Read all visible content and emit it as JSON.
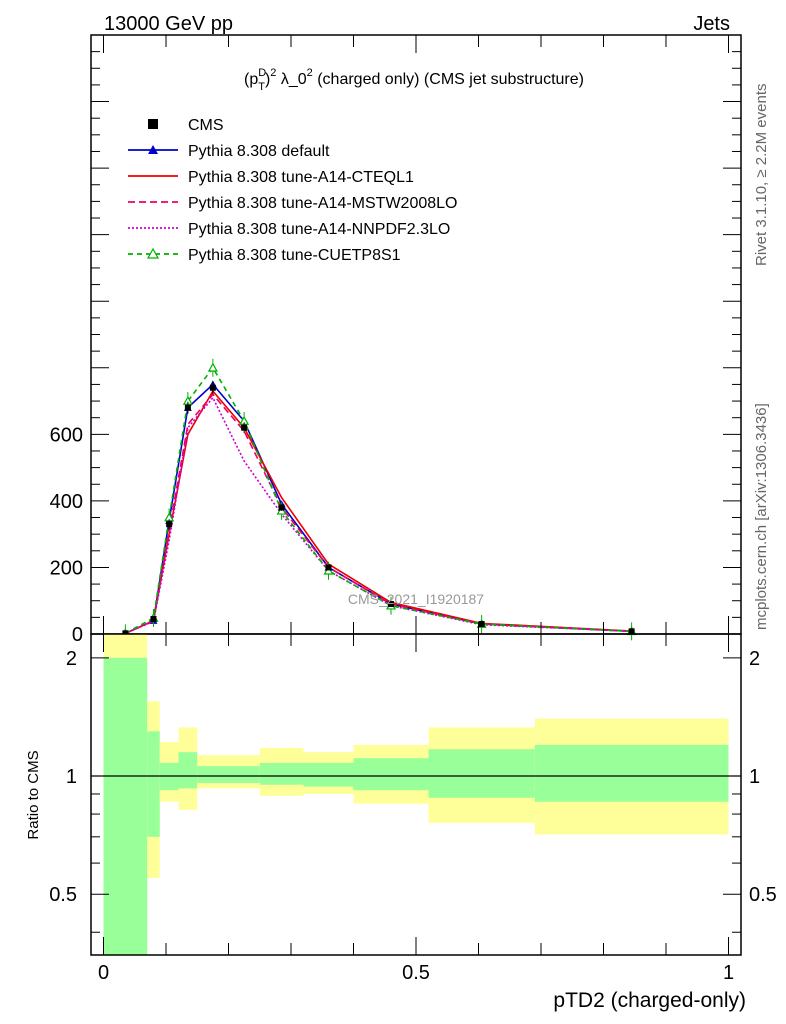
{
  "header": {
    "energy": "13000 GeV pp",
    "category": "Jets"
  },
  "side_labels": {
    "rivet": "Rivet 3.1.10, ≥ 2.2M events",
    "mcplots": "mcplots.cern.ch [arXiv:1306.3436]"
  },
  "watermark": "CMS_2021_I1920187",
  "chart_data": {
    "type": "line",
    "title": "(p_T^D)^2 λ_0^2 (charged only) (CMS jet substructure)",
    "title_parts": {
      "a": "(p",
      "sup1": "D",
      "sub1": "T",
      "b": ")",
      "sup2": "2",
      "c": " λ_0",
      "sup3": "2",
      "d": " (charged only) (CMS jet substructure)"
    },
    "xlabel": "pTD2 (charged-only)",
    "ylabel": "",
    "ratio_ylabel": "Ratio to CMS",
    "xlim": [
      -0.02,
      1.02
    ],
    "ylim": [
      0,
      1800
    ],
    "ratio_ylim": [
      0.35,
      2.3
    ],
    "ratio_log": true,
    "x_ticks": [
      0,
      0.5,
      1
    ],
    "x_tick_labels": [
      "0",
      "0.5",
      "1"
    ],
    "y_ticks": [
      0,
      200,
      400,
      600
    ],
    "y_tick_labels": [
      "0",
      "200",
      "400",
      "600"
    ],
    "ratio_ticks": [
      0.5,
      1,
      2
    ],
    "ratio_tick_labels": [
      "0.5",
      "1",
      "2"
    ],
    "bin_edges": [
      0,
      0.07,
      0.09,
      0.12,
      0.15,
      0.2,
      0.25,
      0.32,
      0.4,
      0.52,
      0.69,
      1.0
    ],
    "x": [
      0.035,
      0.08,
      0.105,
      0.135,
      0.175,
      0.225,
      0.285,
      0.36,
      0.46,
      0.605,
      0.845
    ],
    "data": {
      "name": "CMS",
      "values": [
        2,
        45,
        330,
        680,
        740,
        620,
        380,
        200,
        90,
        30,
        8
      ],
      "err_lo": [
        2,
        8,
        15,
        18,
        20,
        16,
        10,
        6,
        4,
        2,
        1
      ],
      "err_hi": [
        2,
        8,
        15,
        18,
        20,
        16,
        10,
        6,
        4,
        2,
        1
      ]
    },
    "series": [
      {
        "name": "Pythia 8.308 default",
        "color": "#0000cc",
        "dash": "",
        "marker": "triangle-filled",
        "values": [
          2,
          40,
          340,
          680,
          750,
          640,
          390,
          200,
          90,
          30,
          8
        ]
      },
      {
        "name": "Pythia 8.308 tune-A14-CTEQL1",
        "color": "#ee0000",
        "dash": "",
        "marker": "none",
        "values": [
          2,
          40,
          300,
          600,
          730,
          620,
          410,
          210,
          95,
          32,
          9
        ]
      },
      {
        "name": "Pythia 8.308 tune-A14-MSTW2008LO",
        "color": "#ee0066",
        "dash": "7,4",
        "marker": "none",
        "values": [
          2,
          40,
          310,
          630,
          720,
          610,
          380,
          200,
          90,
          30,
          8
        ]
      },
      {
        "name": "Pythia 8.308 tune-A14-NNPDF2.3LO",
        "color": "#cc00cc",
        "dash": "2,2",
        "marker": "none",
        "values": [
          2,
          38,
          280,
          620,
          710,
          520,
          360,
          190,
          85,
          28,
          8
        ]
      },
      {
        "name": "Pythia 8.308 tune-CUETP8S1",
        "color": "#00b000",
        "dash": "5,4",
        "marker": "triangle-open",
        "values": [
          2,
          48,
          350,
          700,
          800,
          640,
          370,
          190,
          85,
          30,
          8
        ]
      }
    ],
    "band_inner": {
      "color": "#99ff99",
      "lo": [
        0.1,
        0.7,
        0.92,
        0.93,
        0.96,
        0.96,
        0.95,
        0.94,
        0.92,
        0.88,
        0.86
      ],
      "hi": [
        2.0,
        1.3,
        1.08,
        1.15,
        1.06,
        1.06,
        1.08,
        1.08,
        1.11,
        1.17,
        1.2
      ]
    },
    "band_outer": {
      "color": "#ffff99",
      "lo": [
        0.1,
        0.55,
        0.86,
        0.82,
        0.93,
        0.93,
        0.89,
        0.9,
        0.85,
        0.76,
        0.71
      ],
      "hi": [
        3.0,
        1.55,
        1.22,
        1.33,
        1.13,
        1.13,
        1.18,
        1.15,
        1.2,
        1.33,
        1.4
      ]
    },
    "legend_placement": "top-left"
  }
}
